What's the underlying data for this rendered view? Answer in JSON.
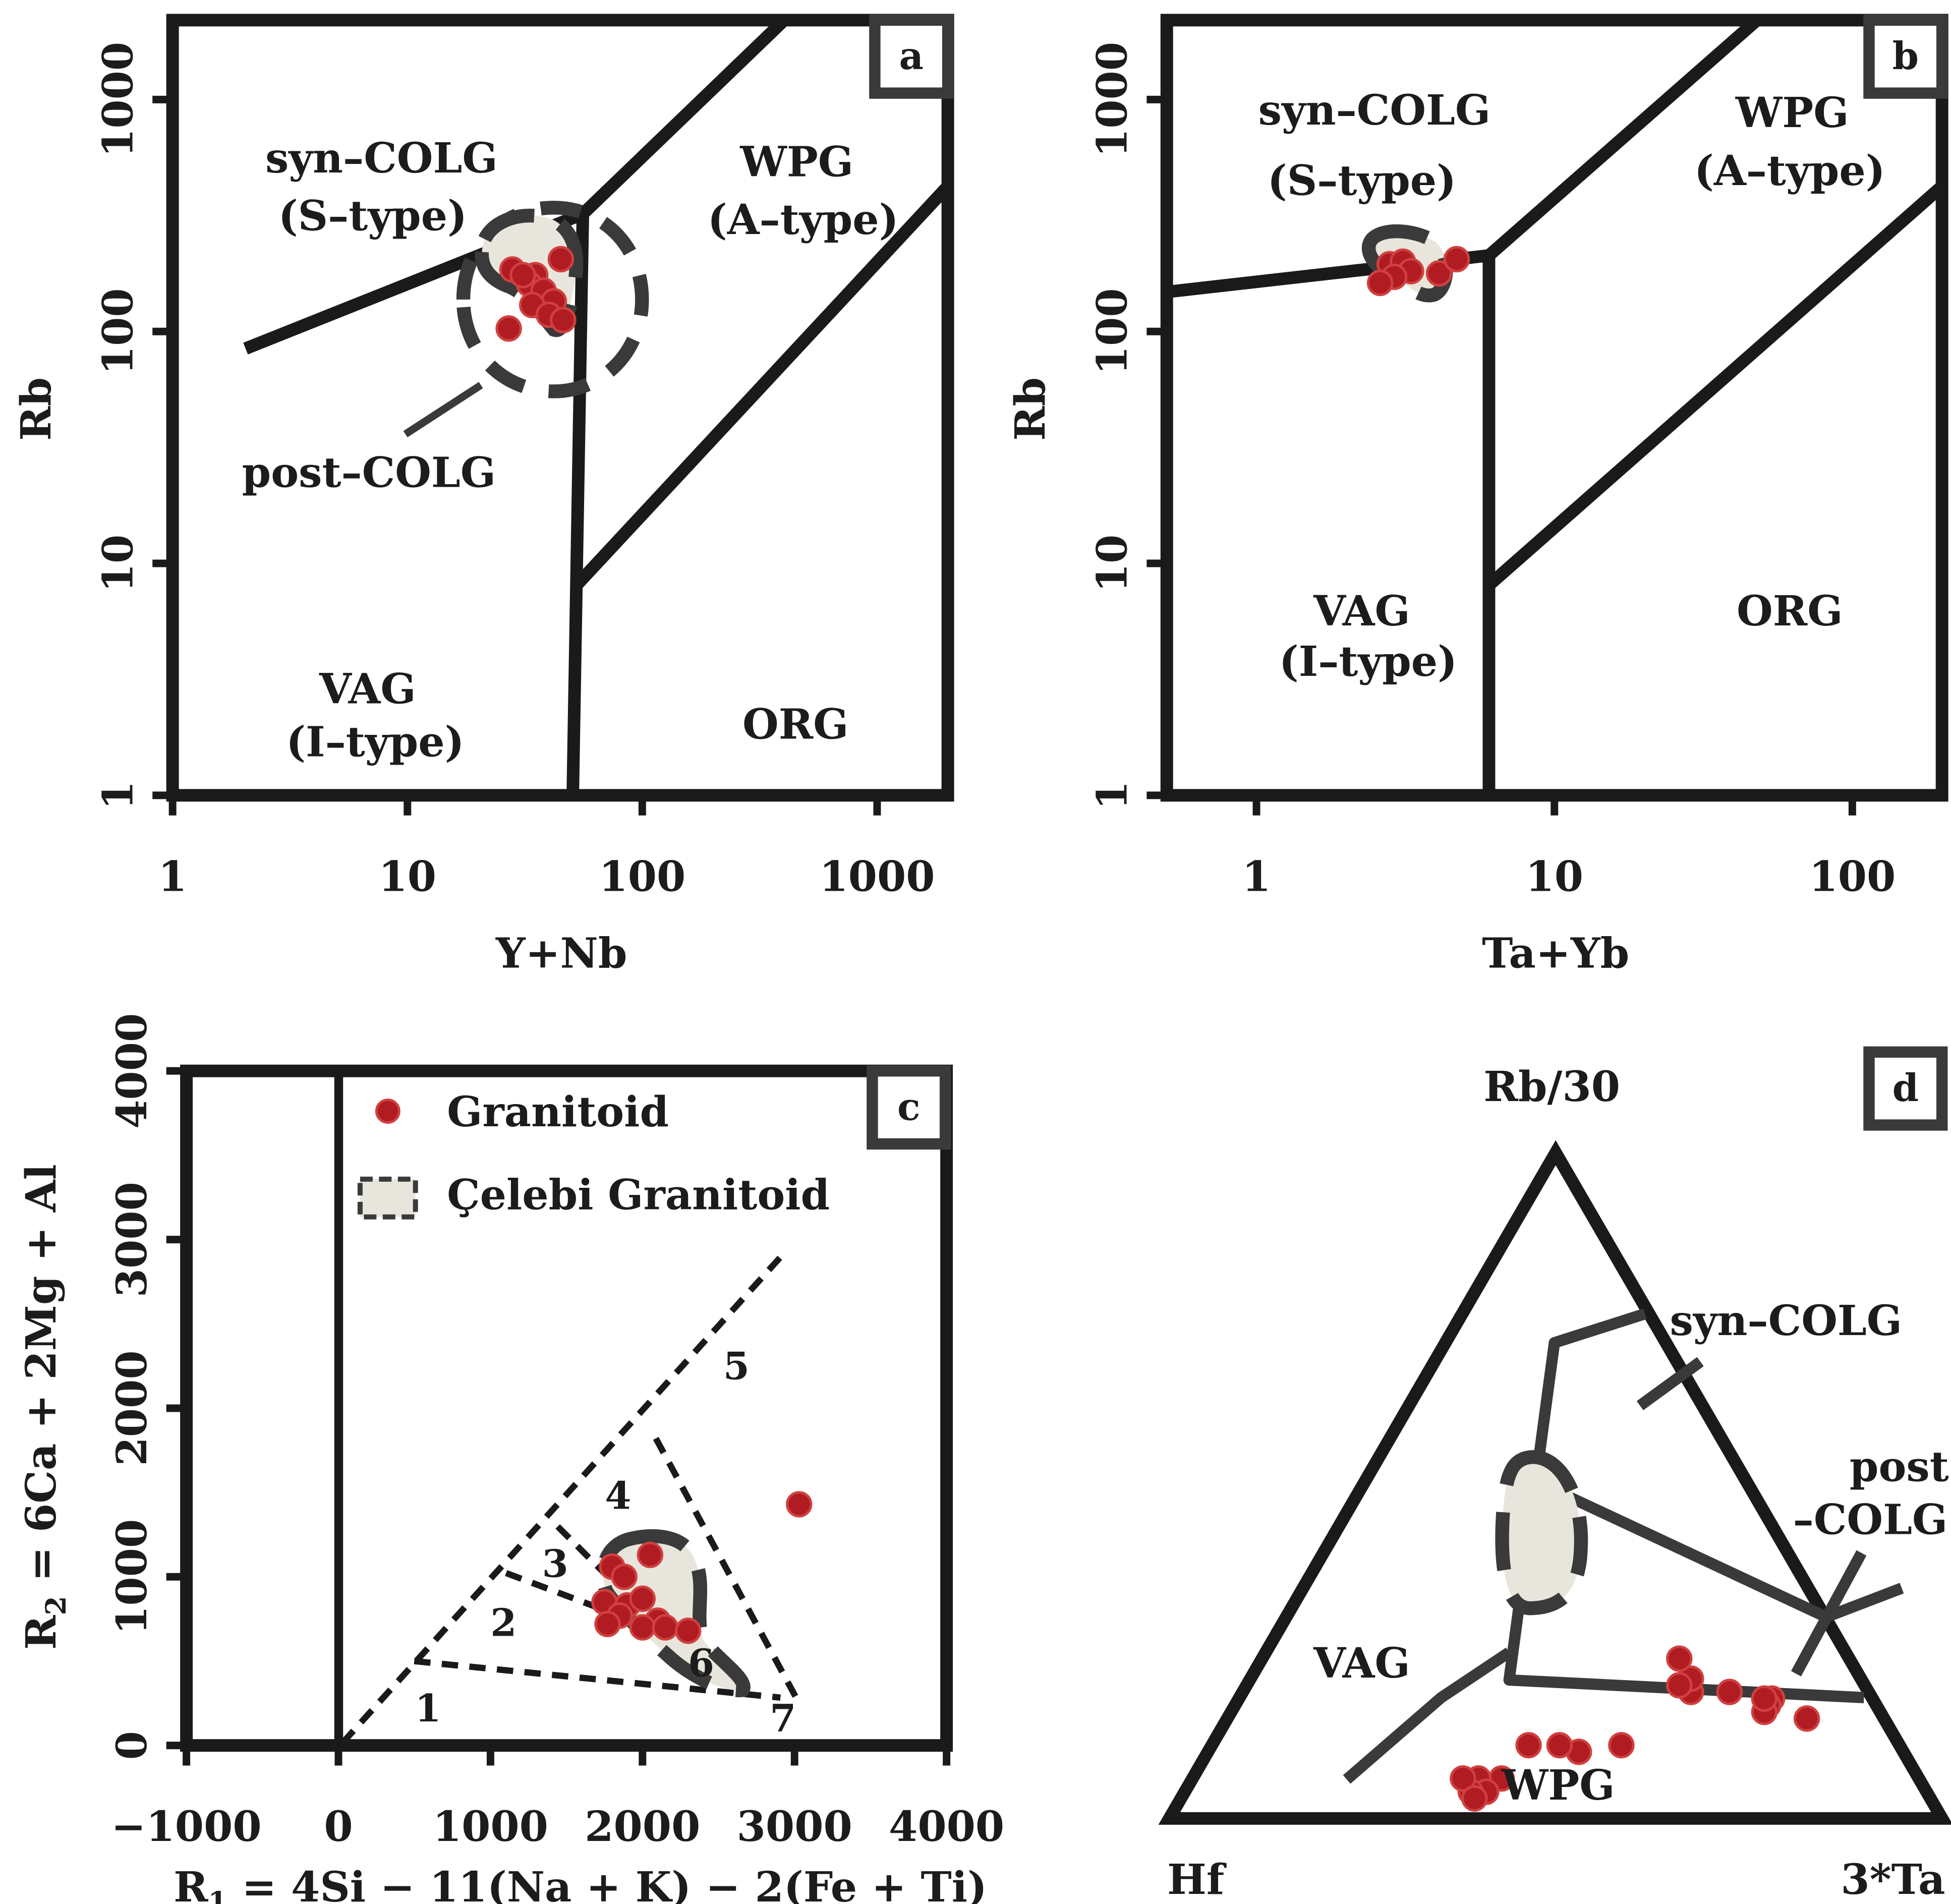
{
  "legend": {
    "granitoid": "Granitoid",
    "celebi": "Çelebi Granitoid"
  },
  "chart_data": [
    {
      "id": "a",
      "panel_label": "a",
      "type": "scatter",
      "scale": "log-log",
      "xlabel": "Y+Nb",
      "ylabel": "Rb",
      "xlim": [
        1,
        2000
      ],
      "ylim": [
        1,
        2200
      ],
      "xticks": [
        1,
        10,
        100,
        1000
      ],
      "yticks": [
        1,
        10,
        100,
        1000
      ],
      "xticklabels": [
        "1",
        "10",
        "100",
        "1000"
      ],
      "yticklabels": [
        "1",
        "10",
        "100",
        "1000"
      ],
      "fields": {
        "syn_colg": [
          "syn–COLG",
          "(S–type)"
        ],
        "wpg": [
          "WPG",
          "(A–type)"
        ],
        "vag": [
          "VAG",
          "(I–type)"
        ],
        "org": [
          "ORG"
        ],
        "post_colg": [
          "post–COLG"
        ]
      },
      "series": [
        {
          "name": "Granitoid",
          "points": [
            [
              28,
              185
            ],
            [
              35,
              175
            ],
            [
              45,
              205
            ],
            [
              33,
              160
            ],
            [
              38,
              150
            ],
            [
              42,
              135
            ],
            [
              34,
              130
            ],
            [
              40,
              118
            ],
            [
              46,
              112
            ],
            [
              27,
              103
            ],
            [
              31,
              175
            ]
          ]
        }
      ]
    },
    {
      "id": "b",
      "panel_label": "b",
      "type": "scatter",
      "scale": "log-log",
      "xlabel": "Ta+Yb",
      "ylabel": "Rb",
      "xlim": [
        0.5,
        200
      ],
      "ylim": [
        1,
        2200
      ],
      "xticks": [
        1,
        10,
        100
      ],
      "yticks": [
        1,
        10,
        100,
        1000
      ],
      "xticklabels": [
        "1",
        "10",
        "100"
      ],
      "yticklabels": [
        "1",
        "10",
        "100",
        "1000"
      ],
      "fields": {
        "syn_colg": [
          "syn–COLG",
          "(S–type)"
        ],
        "wpg": [
          "WPG",
          "(A–type)"
        ],
        "vag": [
          "VAG",
          "(I–type)"
        ],
        "org": [
          "ORG"
        ]
      },
      "series": [
        {
          "name": "Granitoid",
          "points": [
            [
              2.8,
              195
            ],
            [
              3.1,
              200
            ],
            [
              3.3,
              182
            ],
            [
              2.9,
              172
            ],
            [
              2.6,
              162
            ],
            [
              4.1,
              178
            ],
            [
              4.7,
              205
            ]
          ]
        }
      ]
    },
    {
      "id": "c",
      "panel_label": "c",
      "type": "scatter",
      "xlabel": "R1 = 4Si − 11(Na + K) − 2(Fe + Ti)",
      "ylabel": "R2 = 6Ca + 2Mg + Al",
      "xlim": [
        -1000,
        4000
      ],
      "ylim": [
        0,
        4000
      ],
      "xticks": [
        -1000,
        0,
        1000,
        2000,
        3000,
        4000
      ],
      "yticks": [
        0,
        1000,
        2000,
        3000,
        4000
      ],
      "xticklabels": [
        "−1000",
        "0",
        "1000",
        "2000",
        "3000",
        "4000"
      ],
      "yticklabels": [
        "0",
        "1000",
        "2000",
        "3000",
        "4000"
      ],
      "field_numbers": [
        "1",
        "2",
        "3",
        "4",
        "5",
        "6",
        "7"
      ],
      "series": [
        {
          "name": "Granitoid",
          "points": [
            [
              1800,
              1060
            ],
            [
              1880,
              1000
            ],
            [
              2050,
              1130
            ],
            [
              1750,
              850
            ],
            [
              1900,
              830
            ],
            [
              2000,
              870
            ],
            [
              1850,
              770
            ],
            [
              2100,
              740
            ],
            [
              1770,
              720
            ],
            [
              2000,
              700
            ],
            [
              2150,
              700
            ],
            [
              2300,
              680
            ],
            [
              3030,
              1430
            ]
          ]
        }
      ]
    },
    {
      "id": "d",
      "panel_label": "d",
      "type": "scatter",
      "subtype": "ternary",
      "apices": {
        "top": "Rb/30",
        "left": "Hf",
        "right": "3*Ta"
      },
      "fields": {
        "syn_colg": [
          "syn–COLG"
        ],
        "post_colg": [
          "post",
          "–COLG"
        ],
        "vag": [
          "VAG"
        ],
        "wpg": [
          "WPG"
        ]
      },
      "series": [
        {
          "name": "Granitoid",
          "points": [
            [
              0.15,
              0.1,
              0.75
            ],
            [
              0.18,
              0.13,
              0.69
            ],
            [
              0.17,
              0.14,
              0.69
            ],
            [
              0.16,
              0.15,
              0.69
            ],
            [
              0.18,
              0.14,
              0.68
            ],
            [
              0.19,
              0.18,
              0.63
            ],
            [
              0.19,
              0.23,
              0.58
            ],
            [
              0.21,
              0.22,
              0.57
            ],
            [
              0.2,
              0.24,
              0.56
            ],
            [
              0.24,
              0.22,
              0.54
            ],
            [
              0.1,
              0.42,
              0.48
            ],
            [
              0.11,
              0.44,
              0.45
            ],
            [
              0.11,
              0.36,
              0.53
            ],
            [
              0.11,
              0.48,
              0.41
            ],
            [
              0.06,
              0.54,
              0.4
            ],
            [
              0.06,
              0.57,
              0.37
            ],
            [
              0.04,
              0.57,
              0.39
            ],
            [
              0.04,
              0.59,
              0.37
            ],
            [
              0.06,
              0.59,
              0.35
            ],
            [
              0.03,
              0.59,
              0.38
            ]
          ]
        }
      ]
    }
  ]
}
